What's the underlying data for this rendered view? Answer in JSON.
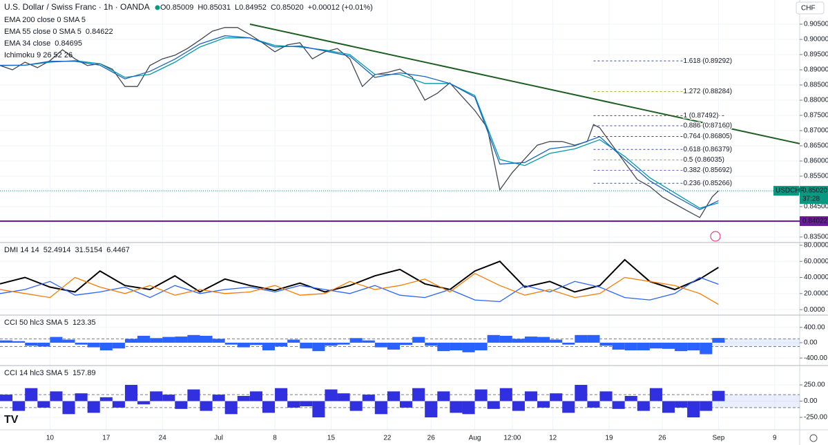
{
  "header": {
    "symbol": "U.S. Dollar / Swiss Franc · 1h · OANDA",
    "ohlc": [
      "O0.85009",
      "H0.85031",
      "L0.84952",
      "C0.85020",
      "+0.00012 (+0.01%)"
    ],
    "currency": "CHF",
    "indicators": [
      "EMA 200 close 0 SMA 5",
      "Ichimoku 9 26 52 26"
    ]
  },
  "chart_data": [
    {
      "type": "line",
      "xlim": [
        0,
        128
      ],
      "xticks": [
        {
          "value": 8,
          "label": "10"
        },
        {
          "value": 17,
          "label": "17"
        },
        {
          "value": 26,
          "label": "24"
        },
        {
          "value": 35,
          "label": "Jul"
        },
        {
          "value": 44,
          "label": "8"
        },
        {
          "value": 53,
          "label": "15"
        },
        {
          "value": 62,
          "label": "22"
        },
        {
          "value": 69,
          "label": "26"
        },
        {
          "value": 76,
          "label": "Aug"
        },
        {
          "value": 82,
          "label": "12:00"
        },
        {
          "value": 88.5,
          "label": "12"
        },
        {
          "value": 97.5,
          "label": "19"
        },
        {
          "value": 106,
          "label": "26"
        },
        {
          "value": 115,
          "label": "Sep"
        },
        {
          "value": 124,
          "label": "9"
        }
      ],
      "ylim": [
        0.8334,
        0.9125
      ],
      "yticks": [
        {
          "value": 0.905,
          "label": "0.90500"
        },
        {
          "value": 0.9,
          "label": "0.90000"
        },
        {
          "value": 0.895,
          "label": "0.89500"
        },
        {
          "value": 0.89,
          "label": "0.89000"
        },
        {
          "value": 0.885,
          "label": "0.88500"
        },
        {
          "value": 0.88,
          "label": "0.88000"
        },
        {
          "value": 0.875,
          "label": "0.87500"
        },
        {
          "value": 0.87,
          "label": "0.87000"
        },
        {
          "value": 0.865,
          "label": "0.86500"
        },
        {
          "value": 0.86,
          "label": "0.86000"
        },
        {
          "value": 0.855,
          "label": "0.85500"
        },
        {
          "value": 0.85,
          "label": "0.85000"
        },
        {
          "value": 0.845,
          "label": "0.84500"
        },
        {
          "value": 0.84,
          "label": "0.84000"
        },
        {
          "value": 0.835,
          "label": "0.83500"
        }
      ],
      "series": [
        {
          "color": "#434651",
          "x": [
            0,
            2,
            4,
            6,
            8,
            10,
            12,
            14,
            16,
            18,
            20,
            22,
            24,
            26,
            28,
            30,
            32,
            34,
            36,
            38,
            40,
            42,
            44,
            46,
            48,
            50,
            52,
            54,
            56,
            58,
            60,
            62,
            64,
            66,
            68,
            70,
            72,
            74,
            76,
            78,
            80,
            82,
            84,
            86,
            88,
            90,
            92,
            94,
            95,
            96,
            98,
            100,
            102,
            104,
            106,
            108,
            110,
            112,
            114,
            115
          ],
          "values": [
            0.8914,
            0.89,
            0.8925,
            0.8907,
            0.893,
            0.8966,
            0.8936,
            0.8914,
            0.892,
            0.8902,
            0.8845,
            0.8845,
            0.8914,
            0.8936,
            0.8948,
            0.897,
            0.8998,
            0.9027,
            0.9039,
            0.9039,
            0.9016,
            0.8989,
            0.8959,
            0.8982,
            0.8989,
            0.8936,
            0.8959,
            0.897,
            0.8936,
            0.8845,
            0.8884,
            0.8891,
            0.8902,
            0.8875,
            0.88,
            0.8823,
            0.8857,
            0.8811,
            0.8766,
            0.8709,
            0.8505,
            0.8562,
            0.8607,
            0.8652,
            0.8664,
            0.8664,
            0.8652,
            0.8664,
            0.872,
            0.8709,
            0.8652,
            0.8595,
            0.8539,
            0.8516,
            0.8482,
            0.8459,
            0.8436,
            0.8414,
            0.8482,
            0.8502
          ]
        },
        {
          "name": "EMA 55 close 0 SMA 5",
          "color": "#0097a7",
          "x": [
            0,
            4,
            8,
            12,
            16,
            20,
            24,
            28,
            32,
            36,
            40,
            44,
            48,
            52,
            56,
            60,
            64,
            68,
            72,
            76,
            80,
            84,
            88,
            92,
            96,
            100,
            104,
            108,
            112,
            115
          ],
          "values": [
            0.8915,
            0.8915,
            0.8925,
            0.893,
            0.892,
            0.8875,
            0.8885,
            0.8925,
            0.8975,
            0.9005,
            0.9005,
            0.898,
            0.8975,
            0.8965,
            0.895,
            0.8885,
            0.8885,
            0.8855,
            0.8855,
            0.8815,
            0.8605,
            0.8585,
            0.8625,
            0.864,
            0.867,
            0.8615,
            0.8545,
            0.8495,
            0.8445,
            0.84622
          ]
        },
        {
          "name": "EMA 34 close",
          "color": "#1565c0",
          "x": [
            0,
            4,
            8,
            12,
            16,
            20,
            24,
            28,
            32,
            36,
            40,
            44,
            48,
            52,
            56,
            60,
            64,
            68,
            72,
            76,
            80,
            84,
            88,
            92,
            96,
            100,
            104,
            108,
            112,
            115
          ],
          "values": [
            0.8914,
            0.8915,
            0.8928,
            0.8928,
            0.8915,
            0.887,
            0.8895,
            0.8935,
            0.8985,
            0.9012,
            0.9005,
            0.8975,
            0.8978,
            0.8962,
            0.8945,
            0.8875,
            0.889,
            0.8878,
            0.8855,
            0.881,
            0.859,
            0.8595,
            0.864,
            0.865,
            0.868,
            0.8605,
            0.8535,
            0.8485,
            0.844,
            0.84695
          ]
        }
      ],
      "trendline": {
        "x": [
          40,
          128
        ],
        "values": [
          0.905,
          0.8657
        ],
        "color": "#1b5e20"
      },
      "fib_x": [
        95,
        116
      ],
      "fib": [
        {
          "value": 0.89292,
          "label": "1.618 (0.89292)",
          "color": "#3949ab"
        },
        {
          "value": 0.88284,
          "label": "1.272 (0.88284)",
          "color": "#9bbb2a"
        },
        {
          "value": 0.87492,
          "label": "1 (0.87492)",
          "color": "#5d4037"
        },
        {
          "value": 0.8716,
          "label": "0.886 (0.87160)",
          "color": "#3949ab"
        },
        {
          "value": 0.86805,
          "label": "0.764 (0.86805)",
          "color": "#5d4037"
        },
        {
          "value": 0.86379,
          "label": "0.618 (0.86379)",
          "color": "#3949ab"
        },
        {
          "value": 0.86035,
          "label": "0.5 (0.86035)",
          "color": "#7cb342"
        },
        {
          "value": 0.85692,
          "label": "0.382 (0.85692)",
          "color": "#7e57c2"
        },
        {
          "value": 0.85266,
          "label": "0.236 (0.85266)",
          "color": "#3949ab"
        }
      ],
      "last_price": {
        "value": 0.8502,
        "label": "0.85020",
        "symbol": "USDCHF",
        "countdown": "37:28",
        "color": "#089981"
      },
      "support": {
        "value": 0.84022,
        "label": "0.84022",
        "color": "#6a1b9a"
      }
    },
    {
      "type": "line",
      "title": "DMI 14 14",
      "ylim": [
        -5.9,
        82.5
      ],
      "yticks": [
        {
          "value": 80,
          "label": "80.0000"
        },
        {
          "value": 60,
          "label": "60.0000"
        },
        {
          "value": 40,
          "label": "40.0000"
        },
        {
          "value": 20,
          "label": "20.0000"
        },
        {
          "value": 0,
          "label": "0.0000"
        }
      ],
      "series": [
        {
          "color": "#000000",
          "x": [
            0,
            4,
            8,
            12,
            16,
            20,
            24,
            28,
            32,
            36,
            40,
            44,
            48,
            52,
            56,
            60,
            64,
            68,
            72,
            76,
            80,
            84,
            88,
            92,
            96,
            100,
            104,
            108,
            112,
            115
          ],
          "values": [
            32,
            40,
            28,
            22,
            48,
            30,
            25,
            42,
            22,
            38,
            30,
            24,
            33,
            22,
            30,
            42,
            50,
            32,
            25,
            48,
            60,
            28,
            35,
            22,
            30,
            62,
            35,
            25,
            38,
            52.4914
          ]
        },
        {
          "color": "#2962ff",
          "x": [
            0,
            4,
            8,
            12,
            16,
            20,
            24,
            28,
            32,
            36,
            40,
            44,
            48,
            52,
            56,
            60,
            64,
            68,
            72,
            76,
            80,
            84,
            88,
            92,
            96,
            100,
            104,
            108,
            112,
            115
          ],
          "values": [
            20,
            25,
            35,
            18,
            22,
            28,
            15,
            30,
            20,
            25,
            28,
            22,
            30,
            25,
            20,
            30,
            18,
            15,
            25,
            12,
            10,
            30,
            22,
            35,
            28,
            15,
            12,
            20,
            40,
            31.5154
          ]
        },
        {
          "color": "#f57c00",
          "x": [
            0,
            4,
            8,
            12,
            16,
            20,
            24,
            28,
            32,
            36,
            40,
            44,
            48,
            52,
            56,
            60,
            64,
            68,
            72,
            76,
            80,
            84,
            88,
            92,
            96,
            100,
            104,
            108,
            112,
            115
          ],
          "values": [
            25,
            20,
            15,
            40,
            28,
            20,
            30,
            18,
            25,
            20,
            22,
            30,
            18,
            20,
            35,
            25,
            30,
            38,
            22,
            45,
            30,
            18,
            25,
            15,
            20,
            40,
            35,
            30,
            20,
            6.4467
          ]
        }
      ]
    },
    {
      "type": "bar",
      "title": "CCI 50 hlc3 SMA 5",
      "ylim": [
        -578,
        702
      ],
      "yticks": [
        {
          "value": 400,
          "label": "400.00"
        },
        {
          "value": 0,
          "label": "0.00"
        },
        {
          "value": -400,
          "label": "-400.00"
        }
      ],
      "bands": [
        100,
        -100
      ],
      "series": [
        {
          "color": "#2962ff",
          "x": [
            0,
            2,
            4,
            6,
            8,
            10,
            12,
            14,
            16,
            18,
            20,
            22,
            24,
            26,
            28,
            30,
            32,
            34,
            36,
            38,
            40,
            42,
            44,
            46,
            48,
            50,
            52,
            54,
            56,
            58,
            60,
            62,
            64,
            66,
            68,
            70,
            72,
            74,
            76,
            78,
            80,
            82,
            84,
            86,
            88,
            90,
            92,
            94,
            96,
            98,
            100,
            102,
            104,
            106,
            108,
            110,
            112,
            114
          ],
          "values": [
            60,
            40,
            -80,
            -100,
            150,
            80,
            -50,
            -120,
            -200,
            -150,
            100,
            180,
            120,
            150,
            160,
            200,
            180,
            100,
            -50,
            -120,
            -60,
            -200,
            -100,
            80,
            -150,
            -220,
            -80,
            -50,
            120,
            60,
            -120,
            -180,
            -60,
            150,
            -80,
            -220,
            -200,
            -250,
            -200,
            200,
            180,
            100,
            160,
            150,
            80,
            -50,
            200,
            200,
            -80,
            -180,
            -200,
            -200,
            -150,
            -160,
            -220,
            -200,
            -300,
            123.35
          ]
        }
      ]
    },
    {
      "type": "bar",
      "title": "CCI 14 hlc3 SMA 5",
      "ylim": [
        -420,
        537
      ],
      "yticks": [
        {
          "value": 250,
          "label": "250.00"
        },
        {
          "value": 0,
          "label": "0.00"
        },
        {
          "value": -250,
          "label": "-250.00"
        }
      ],
      "bands": [
        100,
        -100
      ],
      "series": [
        {
          "color": "#3030e0",
          "x": [
            0,
            2,
            4,
            6,
            8,
            10,
            12,
            14,
            16,
            18,
            20,
            22,
            24,
            26,
            28,
            30,
            32,
            34,
            36,
            38,
            40,
            42,
            44,
            46,
            48,
            50,
            52,
            54,
            56,
            58,
            60,
            62,
            64,
            66,
            68,
            70,
            72,
            74,
            76,
            78,
            80,
            82,
            84,
            86,
            88,
            90,
            92,
            94,
            96,
            98,
            100,
            102,
            104,
            106,
            108,
            110,
            112,
            114
          ],
          "values": [
            100,
            -150,
            200,
            -100,
            150,
            -200,
            120,
            -180,
            60,
            -100,
            250,
            -50,
            150,
            100,
            -120,
            180,
            -150,
            100,
            -200,
            80,
            150,
            -180,
            200,
            -100,
            -80,
            -250,
            180,
            120,
            -150,
            100,
            -200,
            150,
            -100,
            200,
            -250,
            150,
            -180,
            -200,
            180,
            -120,
            200,
            -150,
            150,
            -100,
            120,
            -180,
            250,
            -100,
            150,
            -120,
            80,
            -150,
            200,
            -180,
            -100,
            -250,
            -150,
            157.89
          ]
        }
      ]
    }
  ]
}
